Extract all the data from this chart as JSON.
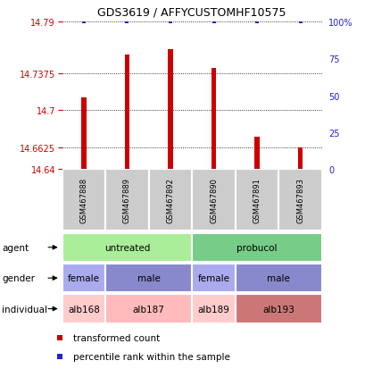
{
  "title": "GDS3619 / AFFYCUSTOMHF10575",
  "samples": [
    "GSM467888",
    "GSM467889",
    "GSM467892",
    "GSM467890",
    "GSM467891",
    "GSM467893"
  ],
  "bar_values": [
    14.713,
    14.756,
    14.762,
    14.743,
    14.673,
    14.6625
  ],
  "percentile_values": [
    100,
    100,
    100,
    100,
    100,
    100
  ],
  "ylim_min": 14.64,
  "ylim_max": 14.79,
  "yticks": [
    14.64,
    14.6625,
    14.7,
    14.7375,
    14.79
  ],
  "ytick_labels": [
    "14.64",
    "14.6625",
    "14.7",
    "14.7375",
    "14.79"
  ],
  "right_yticks": [
    0,
    25,
    50,
    75,
    100
  ],
  "right_ytick_labels": [
    "0",
    "25",
    "50",
    "75",
    "100%"
  ],
  "bar_color": "#cc0000",
  "percentile_color": "#2222cc",
  "agent_groups": [
    {
      "label": "untreated",
      "start": 0,
      "end": 3,
      "color": "#aaee99"
    },
    {
      "label": "probucol",
      "start": 3,
      "end": 6,
      "color": "#77cc88"
    }
  ],
  "gender_groups": [
    {
      "label": "female",
      "start": 0,
      "end": 1,
      "color": "#aaaaee"
    },
    {
      "label": "male",
      "start": 1,
      "end": 3,
      "color": "#8888cc"
    },
    {
      "label": "female",
      "start": 3,
      "end": 4,
      "color": "#aaaaee"
    },
    {
      "label": "male",
      "start": 4,
      "end": 6,
      "color": "#8888cc"
    }
  ],
  "individual_groups": [
    {
      "label": "alb168",
      "start": 0,
      "end": 1,
      "color": "#ffcccc"
    },
    {
      "label": "alb187",
      "start": 1,
      "end": 3,
      "color": "#ffbbbb"
    },
    {
      "label": "alb189",
      "start": 3,
      "end": 4,
      "color": "#ffcccc"
    },
    {
      "label": "alb193",
      "start": 4,
      "end": 6,
      "color": "#cc7777"
    }
  ],
  "legend_items": [
    {
      "label": "transformed count",
      "color": "#cc0000"
    },
    {
      "label": "percentile rank within the sample",
      "color": "#2222cc"
    }
  ],
  "row_label_names": [
    "agent",
    "gender",
    "individual"
  ]
}
